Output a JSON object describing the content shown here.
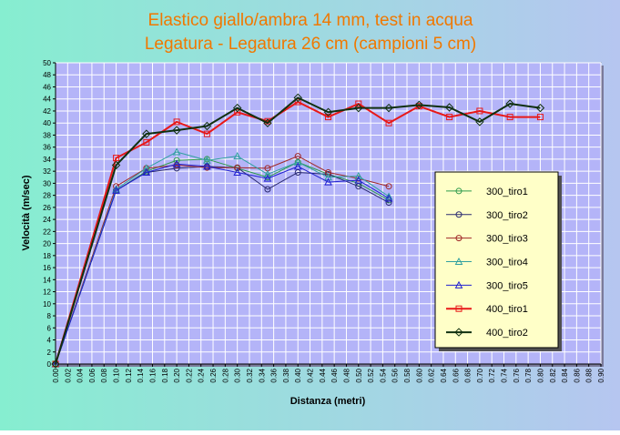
{
  "chart_data": {
    "type": "line",
    "title_line1": "Elastico giallo/ambra 14 mm, test in acqua",
    "title_line2": "Legatura - Legatura 26 cm (campioni 5 cm)",
    "xlabel": "Distanza (metri)",
    "ylabel": "Velocità (m/sec)",
    "xlim": [
      0,
      0.9
    ],
    "ylim": [
      0,
      50
    ],
    "x_ticks": [
      "0.00",
      "0.02",
      "0.04",
      "0.06",
      "0.08",
      "0.10",
      "0.12",
      "0.14",
      "0.16",
      "0.18",
      "0.20",
      "0.22",
      "0.24",
      "0.26",
      "0.28",
      "0.30",
      "0.32",
      "0.34",
      "0.36",
      "0.38",
      "0.40",
      "0.42",
      "0.44",
      "0.46",
      "0.48",
      "0.50",
      "0.52",
      "0.54",
      "0.56",
      "0.58",
      "0.60",
      "0.62",
      "0.64",
      "0.66",
      "0.68",
      "0.70",
      "0.72",
      "0.74",
      "0.76",
      "0.78",
      "0.80",
      "0.82",
      "0.84",
      "0.86",
      "0.88",
      "0.90"
    ],
    "y_ticks": [
      "0",
      "2",
      "4",
      "6",
      "8",
      "10",
      "12",
      "14",
      "16",
      "18",
      "20",
      "22",
      "24",
      "26",
      "28",
      "30",
      "32",
      "34",
      "36",
      "38",
      "40",
      "42",
      "44",
      "46",
      "48",
      "50"
    ],
    "grid": true,
    "legend_position": "right",
    "colors": {
      "background_start": "#86eed0",
      "background_end": "#b6c6f0",
      "plot_background": "#b4b4f8",
      "grid": "#ffffff",
      "title": "#f07800",
      "legend_background": "#ffffc8"
    },
    "series": [
      {
        "name": "300_tiro1",
        "color": "#2e9a4c",
        "marker": "circle",
        "width": 1,
        "x": [
          0,
          0.1,
          0.15,
          0.2,
          0.25,
          0.3,
          0.35,
          0.4,
          0.45,
          0.5,
          0.55
        ],
        "y": [
          0,
          28.8,
          32.0,
          33.8,
          34.0,
          32.5,
          31.0,
          33.5,
          31.5,
          30.0,
          27.2
        ]
      },
      {
        "name": "300_tiro2",
        "color": "#2a2a70",
        "marker": "circle",
        "width": 1,
        "x": [
          0,
          0.1,
          0.15,
          0.2,
          0.25,
          0.3,
          0.35,
          0.4,
          0.45,
          0.5,
          0.55
        ],
        "y": [
          0,
          28.8,
          31.8,
          32.5,
          32.8,
          32.6,
          29.0,
          31.8,
          31.5,
          29.5,
          26.8
        ]
      },
      {
        "name": "300_tiro3",
        "color": "#a02828",
        "marker": "circle",
        "width": 1,
        "x": [
          0,
          0.1,
          0.15,
          0.2,
          0.25,
          0.3,
          0.35,
          0.4,
          0.45,
          0.5,
          0.55
        ],
        "y": [
          0,
          29.5,
          32.5,
          33.0,
          32.6,
          32.6,
          32.5,
          34.5,
          31.8,
          30.8,
          29.5
        ]
      },
      {
        "name": "300_tiro4",
        "color": "#30a0a0",
        "marker": "triangle",
        "width": 1,
        "x": [
          0,
          0.1,
          0.15,
          0.2,
          0.25,
          0.3,
          0.35,
          0.4,
          0.45,
          0.5,
          0.55
        ],
        "y": [
          0,
          29.0,
          32.5,
          35.2,
          33.8,
          34.5,
          31.5,
          33.5,
          31.0,
          31.2,
          27.8
        ]
      },
      {
        "name": "300_tiro5",
        "color": "#2020d0",
        "marker": "triangle",
        "width": 1,
        "x": [
          0,
          0.1,
          0.15,
          0.2,
          0.25,
          0.3,
          0.35,
          0.4,
          0.45,
          0.5,
          0.55
        ],
        "y": [
          0,
          28.8,
          31.8,
          33.2,
          32.8,
          31.8,
          30.8,
          32.8,
          30.2,
          30.5,
          27.5
        ]
      },
      {
        "name": "400_tiro1",
        "color": "#e81818",
        "marker": "square",
        "width": 2,
        "x": [
          0,
          0.1,
          0.15,
          0.2,
          0.25,
          0.3,
          0.35,
          0.4,
          0.45,
          0.5,
          0.55,
          0.6,
          0.65,
          0.7,
          0.75,
          0.8
        ],
        "y": [
          0,
          34.2,
          36.8,
          40.2,
          38.2,
          41.8,
          40.3,
          43.5,
          41.0,
          43.2,
          40.0,
          42.8,
          41.0,
          42.0,
          41.0,
          41.0
        ]
      },
      {
        "name": "400_tiro2",
        "color": "#103010",
        "marker": "diamond",
        "width": 2,
        "x": [
          0,
          0.1,
          0.15,
          0.2,
          0.25,
          0.3,
          0.35,
          0.4,
          0.45,
          0.5,
          0.55,
          0.6,
          0.65,
          0.7,
          0.75,
          0.8
        ],
        "y": [
          0,
          33.0,
          38.2,
          38.8,
          39.5,
          42.5,
          40.0,
          44.2,
          41.8,
          42.5,
          42.5,
          43.0,
          42.6,
          40.2,
          43.2,
          42.5
        ]
      }
    ]
  }
}
